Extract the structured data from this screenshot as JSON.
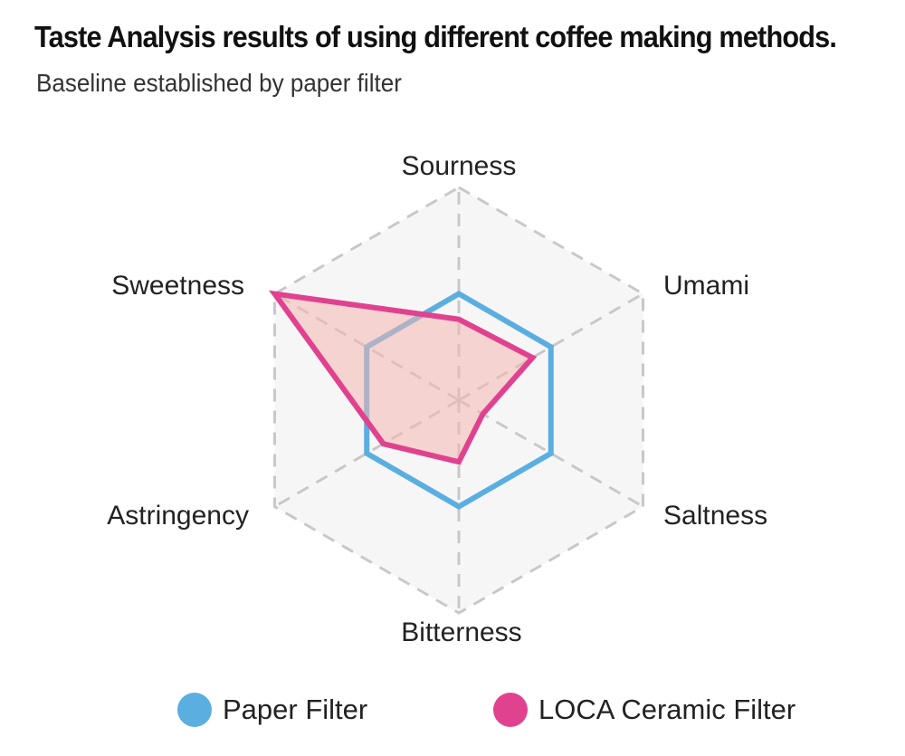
{
  "header": {
    "title": "Taste Analysis results of using different coffee making methods.",
    "subtitle": "Baseline established by paper filter"
  },
  "chart_data": {
    "type": "radar",
    "title": "Taste Analysis results of using different coffee making methods.",
    "subtitle": "Baseline established by paper filter",
    "axes": [
      "Sourness",
      "Umami",
      "Saltness",
      "Bitterness",
      "Astringency",
      "Sweetness"
    ],
    "rlim": [
      0,
      1
    ],
    "grid": true,
    "grid_levels": 2,
    "legend": "bottom",
    "series": [
      {
        "name": "Paper Filter",
        "values": [
          0.5,
          0.5,
          0.5,
          0.5,
          0.5,
          0.5
        ],
        "color": "#5aaee0",
        "fill": "none"
      },
      {
        "name": "LOCA Ceramic Filter",
        "values": [
          0.38,
          0.4,
          0.13,
          0.29,
          0.41,
          1.0
        ],
        "color": "#e0428f",
        "fill": "#f4b6b0"
      }
    ]
  },
  "legend": {
    "items": [
      {
        "label": "Paper Filter",
        "color": "#5aaee0"
      },
      {
        "label": "LOCA Ceramic Filter",
        "color": "#e0428f"
      }
    ]
  }
}
